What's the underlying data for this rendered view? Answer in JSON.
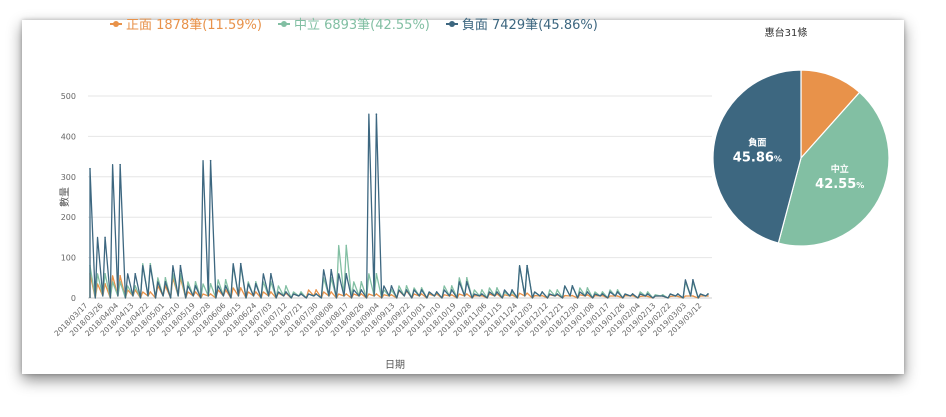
{
  "colors": {
    "positive": "#e8924a",
    "neutral": "#82bfa3",
    "negative": "#3d6780",
    "grid": "#e6e6e6",
    "axis": "#666666"
  },
  "chart_data": [
    {
      "type": "line",
      "legend_position": "top",
      "grid": true,
      "ylabel": "數量",
      "xlabel": "日期",
      "ylim": [
        0,
        500
      ],
      "yticks": [
        0,
        100,
        200,
        300,
        400,
        500
      ],
      "x_tick_labels": [
        "2018/03/17",
        "2018/03/26",
        "2018/04/04",
        "2018/04/13",
        "2018/04/22",
        "2018/05/01",
        "2018/05/10",
        "2018/05/19",
        "2018/05/28",
        "2018/06/06",
        "2018/06/15",
        "2018/06/24",
        "2018/07/03",
        "2018/07/12",
        "2018/07/21",
        "2018/07/30",
        "2018/08/08",
        "2018/08/17",
        "2018/08/26",
        "2018/09/04",
        "2018/09/13",
        "2018/09/22",
        "2018/10/01",
        "2018/10/10",
        "2018/10/19",
        "2018/10/28",
        "2018/11/06",
        "2018/11/15",
        "2018/11/24",
        "2018/12/03",
        "2018/12/12",
        "2018/12/21",
        "2018/12/30",
        "2019/01/08",
        "2019/01/17",
        "2019/01/26",
        "2019/02/04",
        "2019/02/13",
        "2019/02/22",
        "2019/03/03",
        "2019/03/12"
      ],
      "series": [
        {
          "key": "positive",
          "name": "正面 1878筆(11.59%)",
          "values": [
            60,
            35,
            55,
            20,
            15,
            30,
            50,
            15,
            10,
            20,
            25,
            15,
            15,
            12,
            10,
            20,
            15,
            10,
            10,
            10,
            8,
            18,
            10,
            10,
            8,
            10,
            6,
            10,
            8,
            12,
            6,
            8,
            6,
            8,
            6,
            5,
            6,
            4,
            5,
            4,
            5,
            5
          ]
        },
        {
          "key": "neutral",
          "name": "中立 6893筆(42.55%)",
          "values": [
            80,
            60,
            40,
            30,
            85,
            50,
            60,
            40,
            35,
            45,
            80,
            40,
            40,
            30,
            15,
            10,
            50,
            130,
            40,
            60,
            20,
            30,
            25,
            15,
            30,
            50,
            20,
            25,
            15,
            80,
            15,
            20,
            30,
            25,
            15,
            20,
            10,
            15,
            8,
            10,
            40,
            10
          ]
        },
        {
          "key": "negative",
          "name": "負面 7429筆(45.86%)",
          "values": [
            320,
            150,
            330,
            60,
            80,
            40,
            80,
            30,
            340,
            30,
            85,
            35,
            60,
            15,
            10,
            10,
            70,
            60,
            20,
            455,
            30,
            20,
            20,
            15,
            20,
            40,
            10,
            15,
            20,
            80,
            15,
            10,
            30,
            15,
            10,
            15,
            10,
            10,
            5,
            10,
            45,
            10
          ]
        }
      ]
    },
    {
      "type": "pie",
      "title": "惠台31條",
      "slices": [
        {
          "key": "positive",
          "label": "",
          "value": 11.59
        },
        {
          "key": "neutral",
          "label": "中立",
          "value": 42.55,
          "display": "42.55"
        },
        {
          "key": "negative",
          "label": "負面",
          "value": 45.86,
          "display": "45.86"
        }
      ]
    }
  ]
}
